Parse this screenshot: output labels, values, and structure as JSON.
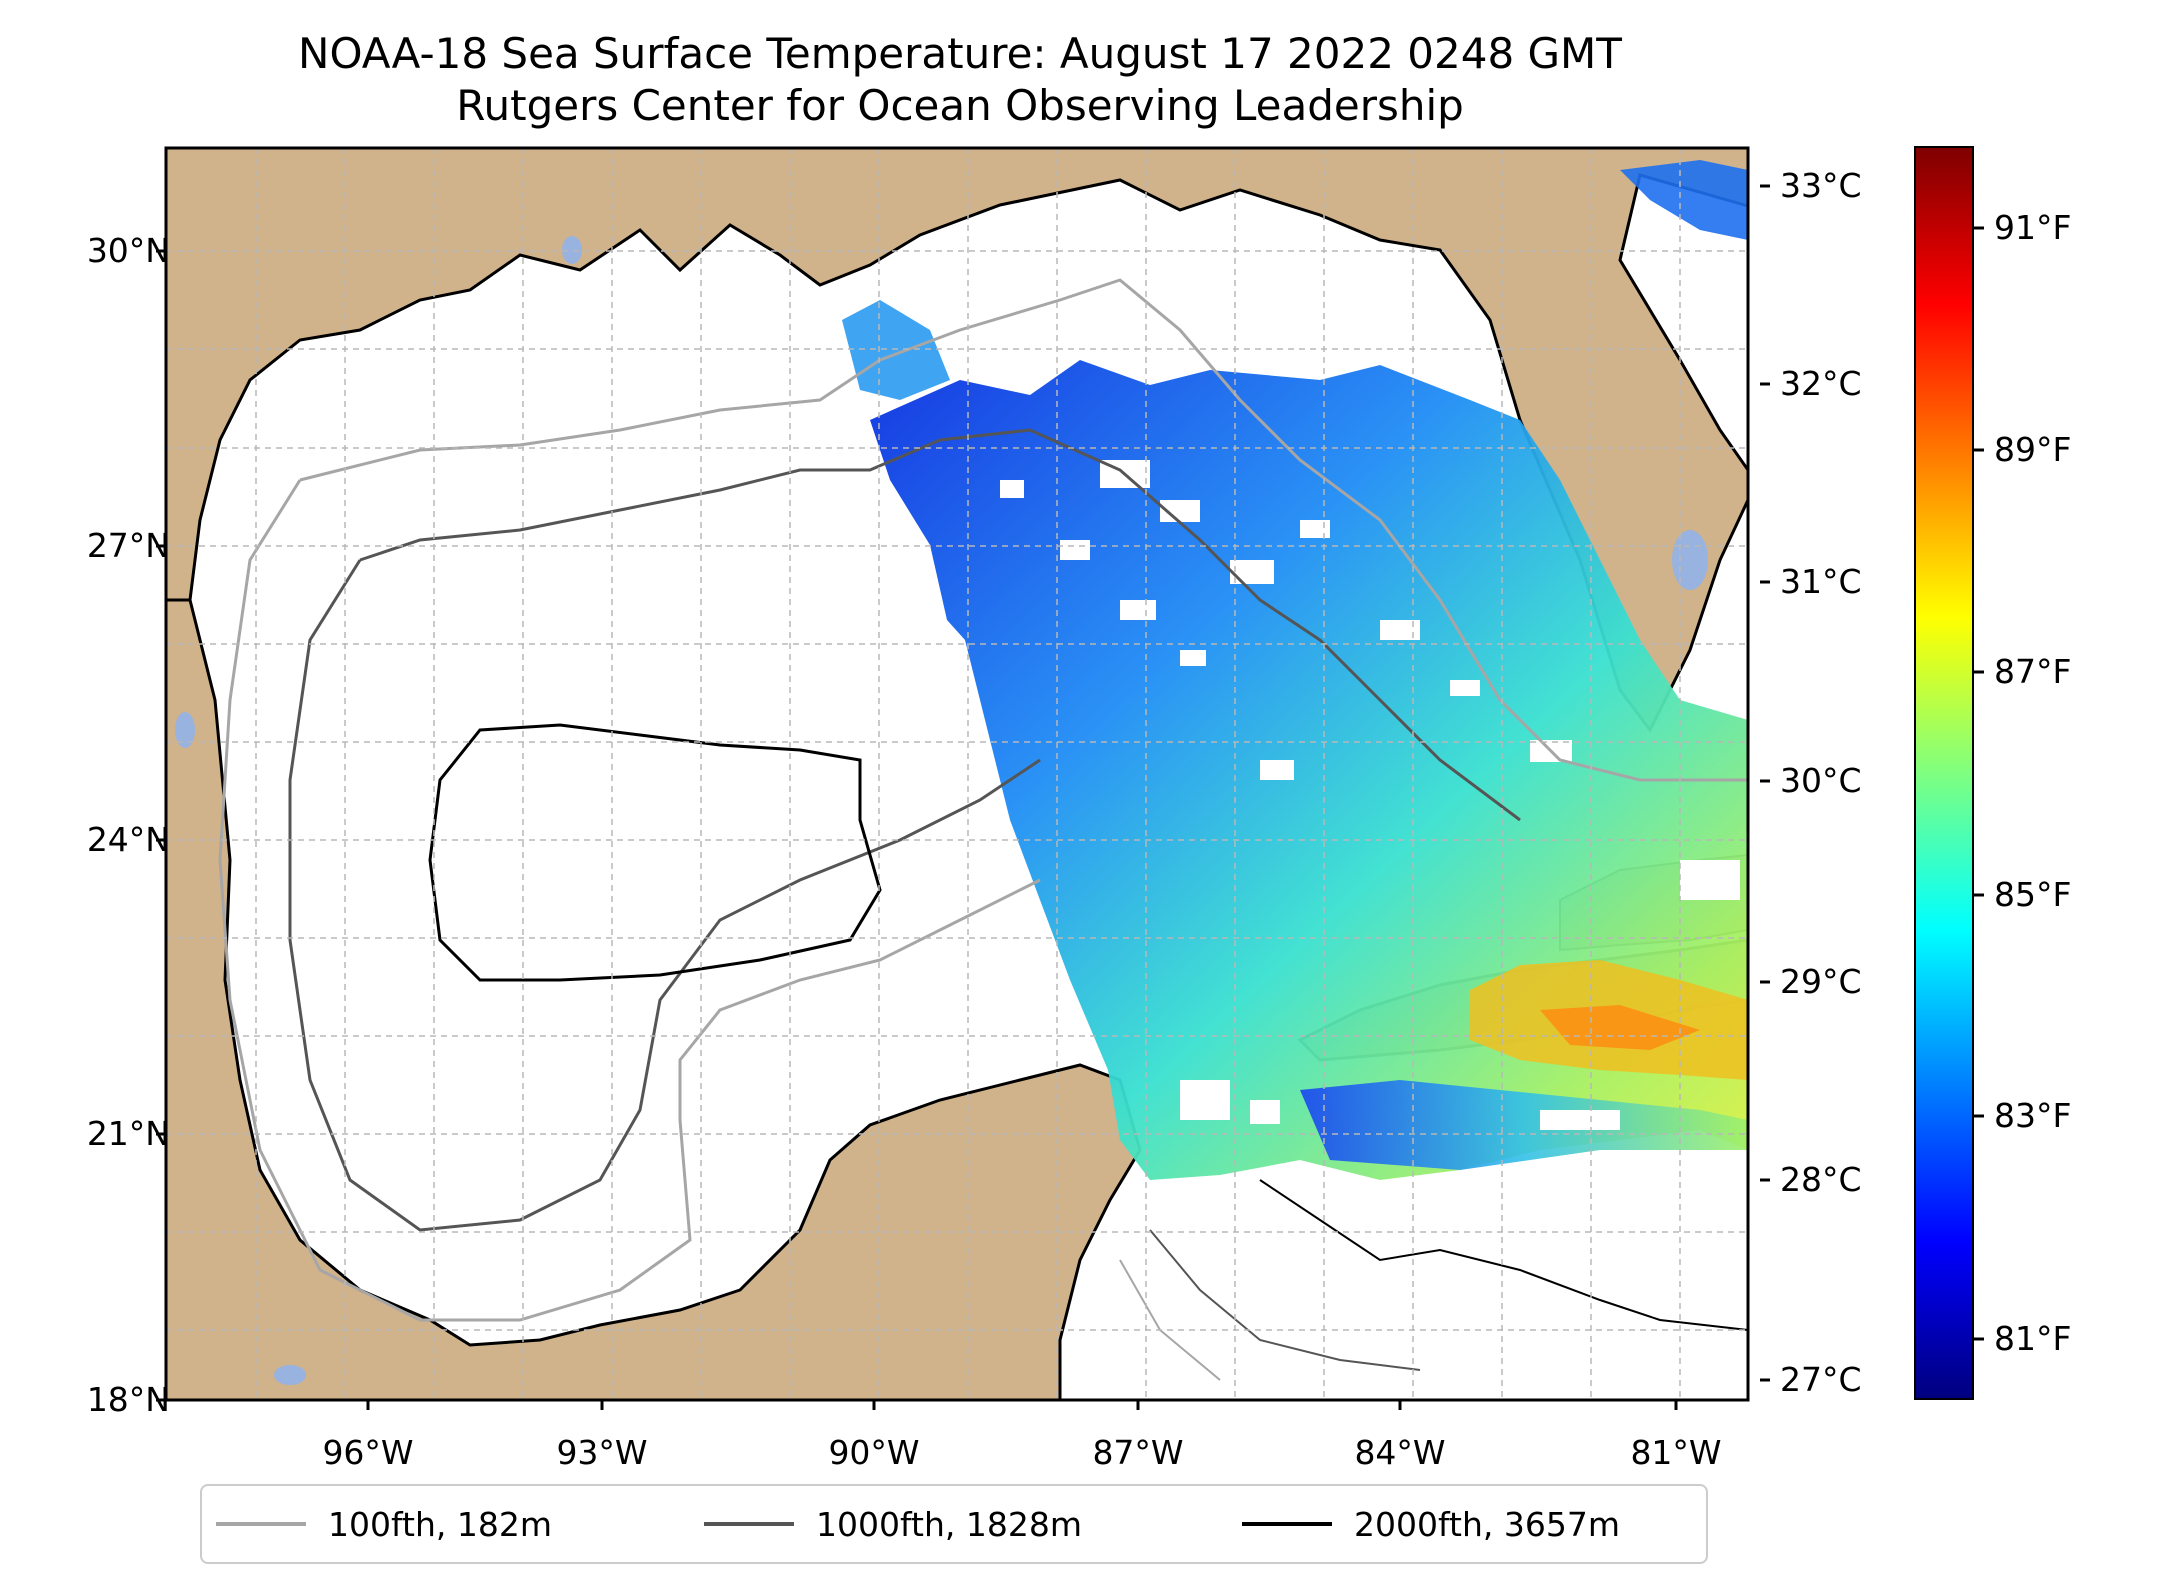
{
  "title": {
    "line1": "NOAA-18 Sea Surface Temperature: August 17 2022 0248 GMT",
    "line2": "Rutgers Center for Ocean Observing Leadership"
  },
  "axes": {
    "lat_labels": [
      "30°N",
      "27°N",
      "24°N",
      "21°N",
      "18°N"
    ],
    "lon_labels": [
      "96°W",
      "93°W",
      "90°W",
      "87°W",
      "84°W",
      "81°W"
    ]
  },
  "colorbar": {
    "celsius_labels": [
      "33°C",
      "32°C",
      "31°C",
      "30°C",
      "29°C",
      "28°C",
      "27°C"
    ],
    "fahrenheit_labels": [
      "91°F",
      "89°F",
      "87°F",
      "85°F",
      "83°F",
      "81°F"
    ],
    "colors": [
      "#00007f",
      "#0000ff",
      "#007fff",
      "#00ffff",
      "#7fff7f",
      "#ffff00",
      "#ff7f00",
      "#ff0000",
      "#7f0000"
    ]
  },
  "legend": {
    "items": [
      {
        "label": "100fth, 182m",
        "color": "#a6a6a6"
      },
      {
        "label": "1000fth, 1828m",
        "color": "#555555"
      },
      {
        "label": "2000fth, 3657m",
        "color": "#000000"
      }
    ]
  },
  "map_colors": {
    "land": "#d0b28b",
    "water_body": "#98b3e0",
    "ocean_nodata": "#ffffff",
    "grid": "#b8b8b8"
  }
}
